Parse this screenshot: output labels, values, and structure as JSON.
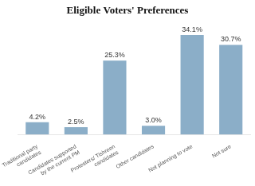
{
  "chart_data": {
    "type": "bar",
    "title": "Eligible Voters' Preferences",
    "categories": [
      "Traditional party\ncandidates",
      "Candidates supported\nby the current PM",
      "Protesters/ Tishreen\ncandidates",
      "Other candidates",
      "Not planning to vote",
      "Not sure"
    ],
    "values": [
      4.2,
      2.5,
      25.3,
      3.0,
      34.1,
      30.7
    ],
    "value_labels": [
      "4.2%",
      "2.5%",
      "25.3%",
      "3.0%",
      "34.1%",
      "30.7%"
    ],
    "color": "#8BAEC8",
    "ylim": [
      0,
      38
    ],
    "grid": false,
    "data_labels": true,
    "tick_labels": "x"
  }
}
